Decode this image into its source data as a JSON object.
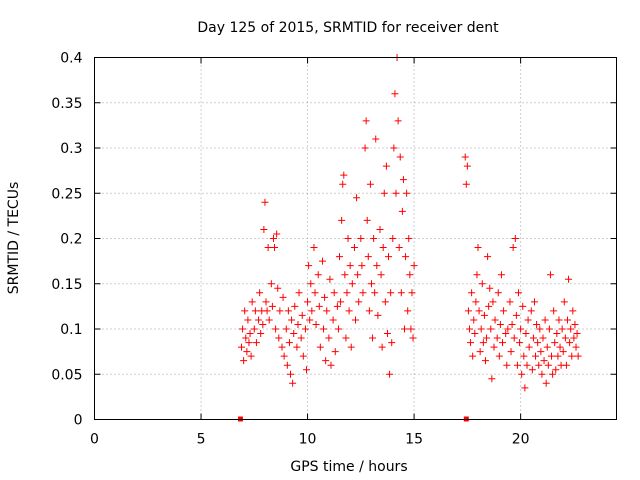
{
  "chart_data": {
    "type": "scatter",
    "title": "Day 125 of 2015, SRMTID for receiver dent",
    "xlabel": "GPS time / hours",
    "ylabel": "SRMTID / TECUs",
    "xlim": [
      0,
      24.5
    ],
    "ylim": [
      0,
      0.4
    ],
    "x_ticks": [
      0,
      5,
      10,
      15,
      20
    ],
    "x_tick_labels": [
      "0",
      "5",
      "10",
      "15",
      "20"
    ],
    "y_ticks": [
      0,
      0.05,
      0.1,
      0.15,
      0.2,
      0.25,
      0.3,
      0.35,
      0.4
    ],
    "y_tick_labels": [
      "0",
      "0.05",
      "0.1",
      "0.15",
      "0.2",
      "0.25",
      "0.3",
      "0.35",
      "0.4"
    ],
    "grid": true,
    "marker": "+",
    "color": "#ff0000",
    "data_gaps_marked_at_zero": [
      6.85,
      17.45
    ],
    "series": [
      {
        "name": "SRMTID",
        "points": [
          [
            6.9,
            0.08
          ],
          [
            6.95,
            0.1
          ],
          [
            7.0,
            0.065
          ],
          [
            7.05,
            0.12
          ],
          [
            7.1,
            0.09
          ],
          [
            7.15,
            0.075
          ],
          [
            7.2,
            0.11
          ],
          [
            7.25,
            0.085
          ],
          [
            7.3,
            0.095
          ],
          [
            7.35,
            0.07
          ],
          [
            7.4,
            0.13
          ],
          [
            7.5,
            0.1
          ],
          [
            7.55,
            0.12
          ],
          [
            7.6,
            0.085
          ],
          [
            7.7,
            0.11
          ],
          [
            7.75,
            0.14
          ],
          [
            7.8,
            0.095
          ],
          [
            7.85,
            0.12
          ],
          [
            7.9,
            0.105
          ],
          [
            7.95,
            0.21
          ],
          [
            8.0,
            0.24
          ],
          [
            8.05,
            0.13
          ],
          [
            8.1,
            0.12
          ],
          [
            8.15,
            0.19
          ],
          [
            8.2,
            0.11
          ],
          [
            8.3,
            0.15
          ],
          [
            8.35,
            0.125
          ],
          [
            8.4,
            0.2
          ],
          [
            8.45,
            0.19
          ],
          [
            8.5,
            0.1
          ],
          [
            8.55,
            0.205
          ],
          [
            8.6,
            0.145
          ],
          [
            8.65,
            0.09
          ],
          [
            8.7,
            0.12
          ],
          [
            8.8,
            0.08
          ],
          [
            8.85,
            0.135
          ],
          [
            8.9,
            0.07
          ],
          [
            9.0,
            0.1
          ],
          [
            9.05,
            0.06
          ],
          [
            9.1,
            0.12
          ],
          [
            9.15,
            0.085
          ],
          [
            9.2,
            0.05
          ],
          [
            9.25,
            0.11
          ],
          [
            9.3,
            0.04
          ],
          [
            9.35,
            0.095
          ],
          [
            9.4,
            0.125
          ],
          [
            9.5,
            0.08
          ],
          [
            9.55,
            0.105
          ],
          [
            9.6,
            0.14
          ],
          [
            9.7,
            0.09
          ],
          [
            9.75,
            0.115
          ],
          [
            9.8,
            0.07
          ],
          [
            9.9,
            0.1
          ],
          [
            9.95,
            0.055
          ],
          [
            10.0,
            0.13
          ],
          [
            10.05,
            0.17
          ],
          [
            10.1,
            0.11
          ],
          [
            10.15,
            0.15
          ],
          [
            10.2,
            0.12
          ],
          [
            10.3,
            0.19
          ],
          [
            10.35,
            0.14
          ],
          [
            10.4,
            0.105
          ],
          [
            10.5,
            0.16
          ],
          [
            10.55,
            0.125
          ],
          [
            10.6,
            0.08
          ],
          [
            10.7,
            0.175
          ],
          [
            10.75,
            0.1
          ],
          [
            10.8,
            0.135
          ],
          [
            10.85,
            0.065
          ],
          [
            10.9,
            0.12
          ],
          [
            11.0,
            0.09
          ],
          [
            11.05,
            0.155
          ],
          [
            11.1,
            0.06
          ],
          [
            11.2,
            0.11
          ],
          [
            11.25,
            0.14
          ],
          [
            11.3,
            0.075
          ],
          [
            11.4,
            0.125
          ],
          [
            11.45,
            0.1
          ],
          [
            11.5,
            0.18
          ],
          [
            11.55,
            0.13
          ],
          [
            11.6,
            0.22
          ],
          [
            11.65,
            0.26
          ],
          [
            11.7,
            0.27
          ],
          [
            11.75,
            0.16
          ],
          [
            11.8,
            0.09
          ],
          [
            11.85,
            0.14
          ],
          [
            11.9,
            0.2
          ],
          [
            11.95,
            0.12
          ],
          [
            12.0,
            0.17
          ],
          [
            12.05,
            0.08
          ],
          [
            12.1,
            0.15
          ],
          [
            12.2,
            0.19
          ],
          [
            12.25,
            0.11
          ],
          [
            12.3,
            0.245
          ],
          [
            12.35,
            0.16
          ],
          [
            12.4,
            0.13
          ],
          [
            12.5,
            0.2
          ],
          [
            12.55,
            0.17
          ],
          [
            12.6,
            0.14
          ],
          [
            12.7,
            0.3
          ],
          [
            12.75,
            0.33
          ],
          [
            12.8,
            0.22
          ],
          [
            12.85,
            0.18
          ],
          [
            12.9,
            0.12
          ],
          [
            12.95,
            0.26
          ],
          [
            13.0,
            0.15
          ],
          [
            13.05,
            0.09
          ],
          [
            13.1,
            0.2
          ],
          [
            13.15,
            0.14
          ],
          [
            13.2,
            0.31
          ],
          [
            13.25,
            0.17
          ],
          [
            13.3,
            0.115
          ],
          [
            13.4,
            0.21
          ],
          [
            13.45,
            0.16
          ],
          [
            13.5,
            0.08
          ],
          [
            13.55,
            0.19
          ],
          [
            13.6,
            0.25
          ],
          [
            13.65,
            0.13
          ],
          [
            13.7,
            0.28
          ],
          [
            13.75,
            0.095
          ],
          [
            13.8,
            0.18
          ],
          [
            13.85,
            0.05
          ],
          [
            13.9,
            0.14
          ],
          [
            13.95,
            0.085
          ],
          [
            14.0,
            0.2
          ],
          [
            14.05,
            0.3
          ],
          [
            14.1,
            0.36
          ],
          [
            14.15,
            0.25
          ],
          [
            14.2,
            0.4
          ],
          [
            14.25,
            0.33
          ],
          [
            14.3,
            0.19
          ],
          [
            14.35,
            0.29
          ],
          [
            14.4,
            0.14
          ],
          [
            14.45,
            0.23
          ],
          [
            14.5,
            0.265
          ],
          [
            14.55,
            0.1
          ],
          [
            14.6,
            0.18
          ],
          [
            14.65,
            0.25
          ],
          [
            14.7,
            0.12
          ],
          [
            14.75,
            0.2
          ],
          [
            14.8,
            0.16
          ],
          [
            14.85,
            0.1
          ],
          [
            14.9,
            0.14
          ],
          [
            14.95,
            0.09
          ],
          [
            15.0,
            0.17
          ],
          [
            17.4,
            0.29
          ],
          [
            17.45,
            0.26
          ],
          [
            17.5,
            0.28
          ],
          [
            17.55,
            0.12
          ],
          [
            17.6,
            0.1
          ],
          [
            17.65,
            0.085
          ],
          [
            17.7,
            0.14
          ],
          [
            17.75,
            0.07
          ],
          [
            17.8,
            0.11
          ],
          [
            17.85,
            0.095
          ],
          [
            17.9,
            0.13
          ],
          [
            17.95,
            0.16
          ],
          [
            18.0,
            0.19
          ],
          [
            18.05,
            0.12
          ],
          [
            18.1,
            0.075
          ],
          [
            18.15,
            0.1
          ],
          [
            18.2,
            0.15
          ],
          [
            18.25,
            0.085
          ],
          [
            18.3,
            0.115
          ],
          [
            18.35,
            0.065
          ],
          [
            18.4,
            0.09
          ],
          [
            18.45,
            0.18
          ],
          [
            18.5,
            0.125
          ],
          [
            18.55,
            0.145
          ],
          [
            18.6,
            0.1
          ],
          [
            18.65,
            0.045
          ],
          [
            18.7,
            0.13
          ],
          [
            18.75,
            0.08
          ],
          [
            18.8,
            0.11
          ],
          [
            18.9,
            0.09
          ],
          [
            18.95,
            0.14
          ],
          [
            19.0,
            0.07
          ],
          [
            19.05,
            0.105
          ],
          [
            19.1,
            0.16
          ],
          [
            19.15,
            0.085
          ],
          [
            19.2,
            0.12
          ],
          [
            19.3,
            0.095
          ],
          [
            19.35,
            0.06
          ],
          [
            19.4,
            0.1
          ],
          [
            19.5,
            0.13
          ],
          [
            19.55,
            0.075
          ],
          [
            19.6,
            0.105
          ],
          [
            19.65,
            0.19
          ],
          [
            19.7,
            0.09
          ],
          [
            19.75,
            0.2
          ],
          [
            19.8,
            0.115
          ],
          [
            19.85,
            0.06
          ],
          [
            19.9,
            0.14
          ],
          [
            19.95,
            0.085
          ],
          [
            20.0,
            0.1
          ],
          [
            20.05,
            0.05
          ],
          [
            20.1,
            0.125
          ],
          [
            20.15,
            0.07
          ],
          [
            20.2,
            0.035
          ],
          [
            20.25,
            0.095
          ],
          [
            20.3,
            0.06
          ],
          [
            20.35,
            0.11
          ],
          [
            20.4,
            0.08
          ],
          [
            20.5,
            0.12
          ],
          [
            20.55,
            0.055
          ],
          [
            20.6,
            0.09
          ],
          [
            20.65,
            0.13
          ],
          [
            20.7,
            0.07
          ],
          [
            20.75,
            0.105
          ],
          [
            20.8,
            0.085
          ],
          [
            20.85,
            0.06
          ],
          [
            20.9,
            0.1
          ],
          [
            20.95,
            0.075
          ],
          [
            21.0,
            0.05
          ],
          [
            21.05,
            0.09
          ],
          [
            21.1,
            0.065
          ],
          [
            21.15,
            0.11
          ],
          [
            21.2,
            0.04
          ],
          [
            21.25,
            0.08
          ],
          [
            21.3,
            0.06
          ],
          [
            21.35,
            0.1
          ],
          [
            21.4,
            0.16
          ],
          [
            21.45,
            0.07
          ],
          [
            21.5,
            0.05
          ],
          [
            21.55,
            0.12
          ],
          [
            21.6,
            0.085
          ],
          [
            21.65,
            0.055
          ],
          [
            21.7,
            0.095
          ],
          [
            21.75,
            0.07
          ],
          [
            21.8,
            0.11
          ],
          [
            21.85,
            0.08
          ],
          [
            21.9,
            0.06
          ],
          [
            21.95,
            0.1
          ],
          [
            22.0,
            0.075
          ],
          [
            22.05,
            0.13
          ],
          [
            22.1,
            0.09
          ],
          [
            22.15,
            0.06
          ],
          [
            22.2,
            0.11
          ],
          [
            22.25,
            0.155
          ],
          [
            22.3,
            0.085
          ],
          [
            22.35,
            0.1
          ],
          [
            22.4,
            0.07
          ],
          [
            22.45,
            0.12
          ],
          [
            22.5,
            0.09
          ],
          [
            22.55,
            0.105
          ],
          [
            22.6,
            0.08
          ],
          [
            22.65,
            0.095
          ],
          [
            22.7,
            0.07
          ]
        ]
      }
    ]
  }
}
